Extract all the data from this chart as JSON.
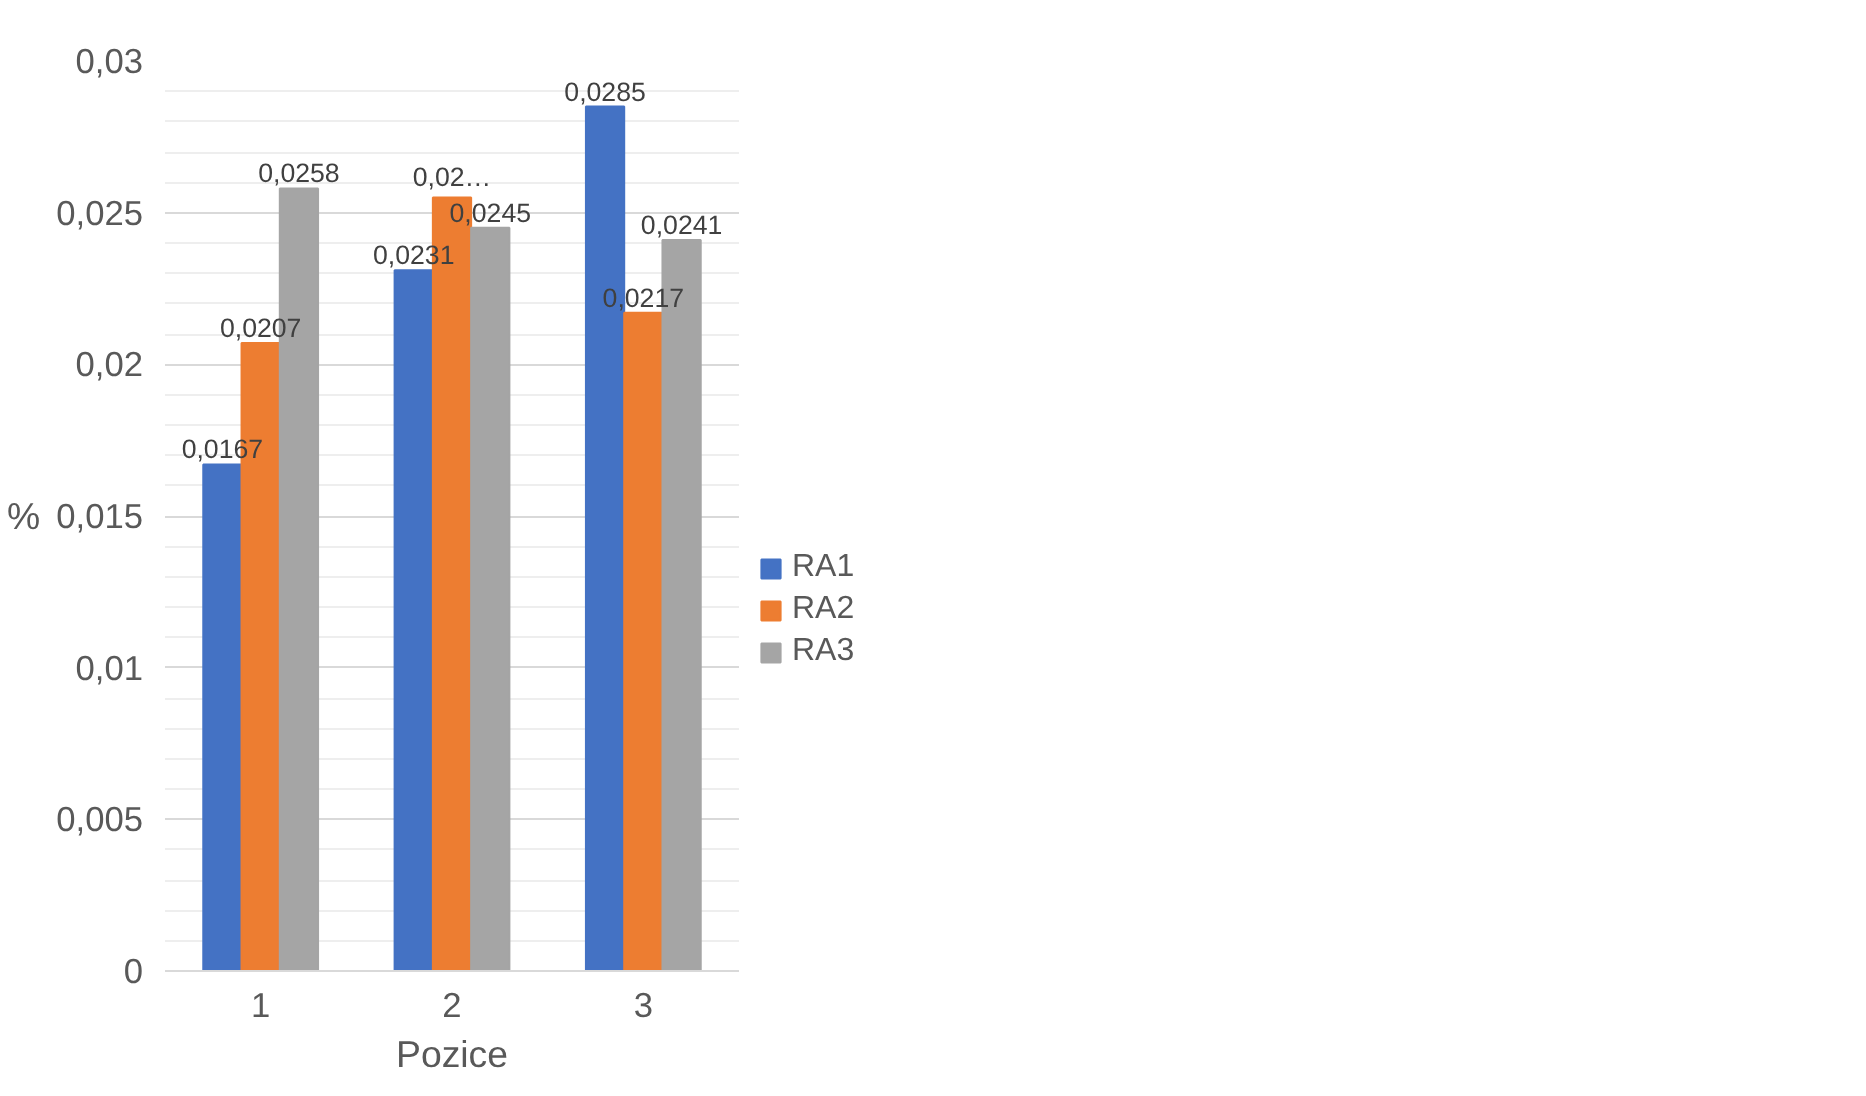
{
  "chart_data": {
    "type": "bar",
    "xlabel": "Pozice",
    "ylabel": "%",
    "categories": [
      "1",
      "2",
      "3"
    ],
    "series": [
      {
        "name": "RA1",
        "color": "#4472c4",
        "values": [
          0.0167,
          0.0231,
          0.0285
        ],
        "value_labels": [
          "0,0167",
          "0,0231",
          "0,0285"
        ]
      },
      {
        "name": "RA2",
        "color": "#ed7d31",
        "values": [
          0.0207,
          0.0255,
          0.0217
        ],
        "value_labels": [
          "0,0207",
          "0,02…",
          "0,0217"
        ]
      },
      {
        "name": "RA3",
        "color": "#a5a5a5",
        "values": [
          0.0258,
          0.0245,
          0.0241
        ],
        "value_labels": [
          "0,0258",
          "0,0245",
          "0,0241"
        ]
      }
    ],
    "ylim": [
      0,
      0.03
    ],
    "yticks": [
      {
        "value": 0,
        "label": "0"
      },
      {
        "value": 0.005,
        "label": "0,005"
      },
      {
        "value": 0.01,
        "label": "0,01"
      },
      {
        "value": 0.015,
        "label": "0,015"
      },
      {
        "value": 0.02,
        "label": "0,02"
      },
      {
        "value": 0.025,
        "label": "0,025"
      },
      {
        "value": 0.03,
        "label": "0,03"
      }
    ],
    "grid": "y",
    "legend": "right"
  }
}
